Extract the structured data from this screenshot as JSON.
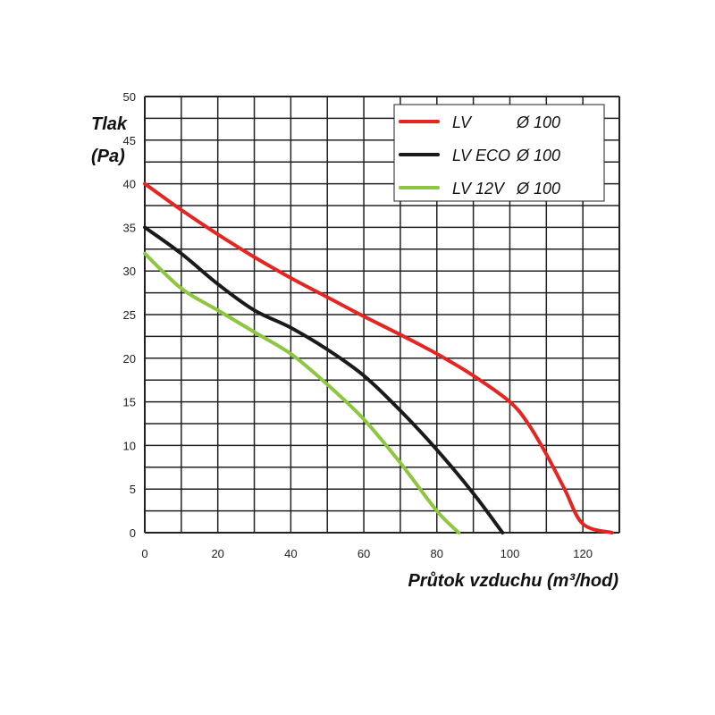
{
  "chart_data": {
    "type": "line",
    "ylabel_line1": "Tlak",
    "ylabel_line2": "(Pa)",
    "xlabel": "Průtok vzduchu (m³/hod)",
    "xlim": [
      0,
      130
    ],
    "ylim": [
      0,
      50
    ],
    "x_ticks": [
      "0",
      "20",
      "40",
      "60",
      "80",
      "100",
      "120"
    ],
    "y_ticks": [
      "0",
      "5",
      "10",
      "15",
      "20",
      "25",
      "30",
      "35",
      "40",
      "45",
      "50"
    ],
    "grid": true,
    "legend_position": "top-right",
    "series": [
      {
        "name": "LV",
        "diameter": "Ø 100",
        "color": "#e52521",
        "points": [
          [
            0,
            40
          ],
          [
            10,
            37
          ],
          [
            20,
            34.2
          ],
          [
            30,
            31.6
          ],
          [
            40,
            29.2
          ],
          [
            50,
            27
          ],
          [
            60,
            24.8
          ],
          [
            70,
            22.7
          ],
          [
            80,
            20.5
          ],
          [
            90,
            18
          ],
          [
            100,
            15
          ],
          [
            105,
            12.5
          ],
          [
            110,
            9
          ],
          [
            115,
            5
          ],
          [
            120,
            1
          ],
          [
            128,
            0
          ]
        ]
      },
      {
        "name": "LV ECO",
        "diameter": "Ø 100",
        "color": "#1a1a1a",
        "points": [
          [
            0,
            35
          ],
          [
            10,
            32
          ],
          [
            20,
            28.5
          ],
          [
            30,
            25.5
          ],
          [
            40,
            23.5
          ],
          [
            50,
            21
          ],
          [
            60,
            18
          ],
          [
            70,
            14
          ],
          [
            80,
            9.5
          ],
          [
            90,
            4.5
          ],
          [
            98,
            0
          ]
        ]
      },
      {
        "name": "LV 12V",
        "diameter": "Ø 100",
        "color": "#8dc63f",
        "points": [
          [
            0,
            32
          ],
          [
            10,
            28
          ],
          [
            20,
            25.5
          ],
          [
            30,
            23
          ],
          [
            40,
            20.5
          ],
          [
            50,
            17
          ],
          [
            60,
            13
          ],
          [
            70,
            8
          ],
          [
            80,
            2.5
          ],
          [
            86,
            0
          ]
        ]
      }
    ]
  }
}
